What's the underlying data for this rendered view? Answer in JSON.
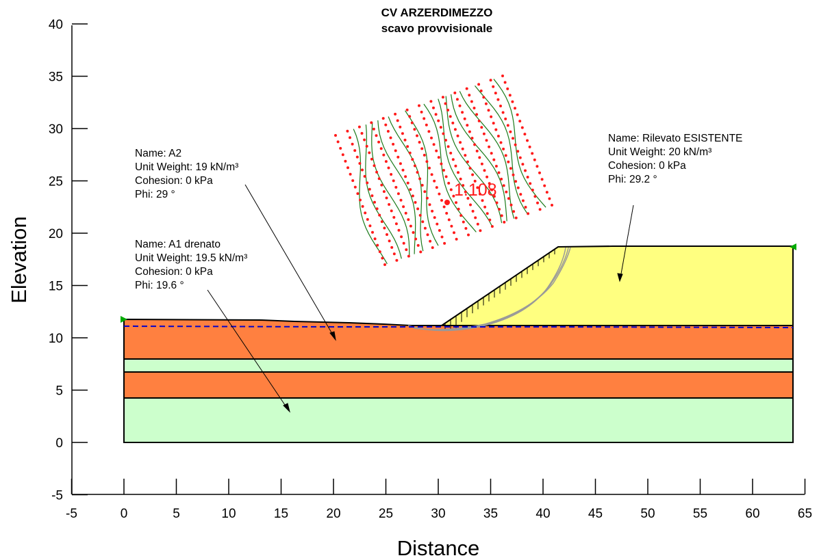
{
  "title": {
    "line1": "CV ARZERDIMEZZO",
    "line2": "scavo provvisionale"
  },
  "axes": {
    "x_label": "Distance",
    "y_label": "Elevation",
    "x_range": [
      -5,
      65
    ],
    "y_range": [
      -5,
      40
    ],
    "x_ticks": [
      -5,
      0,
      5,
      10,
      15,
      20,
      25,
      30,
      35,
      40,
      45,
      50,
      55,
      60,
      65
    ],
    "y_ticks": [
      -5,
      0,
      5,
      10,
      15,
      20,
      25,
      30,
      35,
      40
    ]
  },
  "materials": [
    {
      "id": "a2",
      "lines": [
        "Name: A2",
        "Unit Weight: 19 kN/m³",
        "Cohesion: 0 kPa",
        "Phi: 29 °"
      ],
      "color": "#ff8040"
    },
    {
      "id": "a1",
      "lines": [
        "Name: A1 drenato",
        "Unit Weight: 19.5 kN/m³",
        "Cohesion: 0 kPa",
        "Phi: 19.6 °"
      ],
      "color": "#ccffcc"
    },
    {
      "id": "rilevato",
      "lines": [
        "Name: Rilevato ESISTENTE",
        "Unit Weight: 20 kN/m³",
        "Cohesion: 0 kPa",
        "Phi: 29.2 °"
      ],
      "color": "#ffff80"
    }
  ],
  "factor_of_safety": "1.108",
  "colors": {
    "grid_dots": "#ff1a1a",
    "contours": "#1a7a1a",
    "water_table": "#0000cc",
    "slip_surface": "#999999"
  }
}
